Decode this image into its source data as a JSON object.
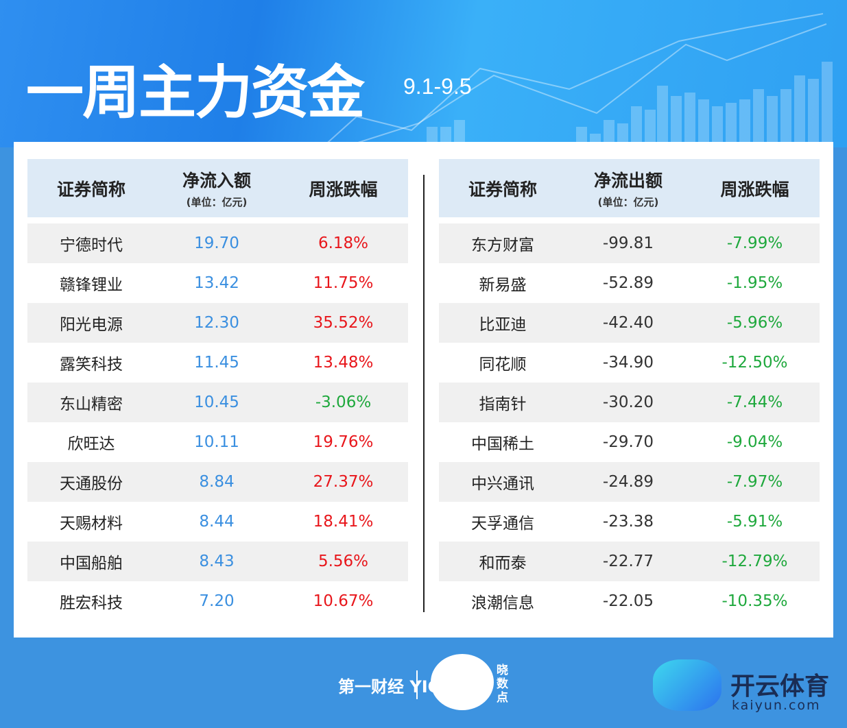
{
  "header": {
    "title": "一周主力资金",
    "date_range": "9.1-9.5"
  },
  "inflow_table": {
    "columns": [
      "证券简称",
      "净流入额",
      "周涨跌幅"
    ],
    "unit": "(单位：亿元)",
    "rows": [
      {
        "name": "宁德时代",
        "amount": "19.70",
        "change": "6.18%",
        "dir": "up"
      },
      {
        "name": "赣锋锂业",
        "amount": "13.42",
        "change": "11.75%",
        "dir": "up"
      },
      {
        "name": "阳光电源",
        "amount": "12.30",
        "change": "35.52%",
        "dir": "up"
      },
      {
        "name": "露笑科技",
        "amount": "11.45",
        "change": "13.48%",
        "dir": "up"
      },
      {
        "name": "东山精密",
        "amount": "10.45",
        "change": "-3.06%",
        "dir": "down"
      },
      {
        "name": "欣旺达",
        "amount": "10.11",
        "change": "19.76%",
        "dir": "up"
      },
      {
        "name": "天通股份",
        "amount": "8.84",
        "change": "27.37%",
        "dir": "up"
      },
      {
        "name": "天赐材料",
        "amount": "8.44",
        "change": "18.41%",
        "dir": "up"
      },
      {
        "name": "中国船舶",
        "amount": "8.43",
        "change": "5.56%",
        "dir": "up"
      },
      {
        "name": "胜宏科技",
        "amount": "7.20",
        "change": "10.67%",
        "dir": "up"
      }
    ]
  },
  "outflow_table": {
    "columns": [
      "证券简称",
      "净流出额",
      "周涨跌幅"
    ],
    "unit": "(单位：亿元)",
    "rows": [
      {
        "name": "东方财富",
        "amount": "-99.81",
        "change": "-7.99%",
        "dir": "down"
      },
      {
        "name": "新易盛",
        "amount": "-52.89",
        "change": "-1.95%",
        "dir": "down"
      },
      {
        "name": "比亚迪",
        "amount": "-42.40",
        "change": "-5.96%",
        "dir": "down"
      },
      {
        "name": "同花顺",
        "amount": "-34.90",
        "change": "-12.50%",
        "dir": "down"
      },
      {
        "name": "指南针",
        "amount": "-30.20",
        "change": "-7.44%",
        "dir": "down"
      },
      {
        "name": "中国稀土",
        "amount": "-29.70",
        "change": "-9.04%",
        "dir": "down"
      },
      {
        "name": "中兴通讯",
        "amount": "-24.89",
        "change": "-7.97%",
        "dir": "down"
      },
      {
        "name": "天孚通信",
        "amount": "-23.38",
        "change": "-5.91%",
        "dir": "down"
      },
      {
        "name": "和而泰",
        "amount": "-22.77",
        "change": "-12.79%",
        "dir": "down"
      },
      {
        "name": "浪潮信息",
        "amount": "-22.05",
        "change": "-10.35%",
        "dir": "down"
      }
    ]
  },
  "colors": {
    "background": "#3d93e0",
    "inflow": "#3a8fe0",
    "up": "#e8161b",
    "down": "#1ea83c",
    "header": "#ddeaf6"
  },
  "footer": {
    "yicai_logo": "第一财经 YICAI",
    "xiaoshudian_logo": "晓数点",
    "kaiyun_logo": "开云体育",
    "kaiyun_domain": "kaiyun.com"
  }
}
